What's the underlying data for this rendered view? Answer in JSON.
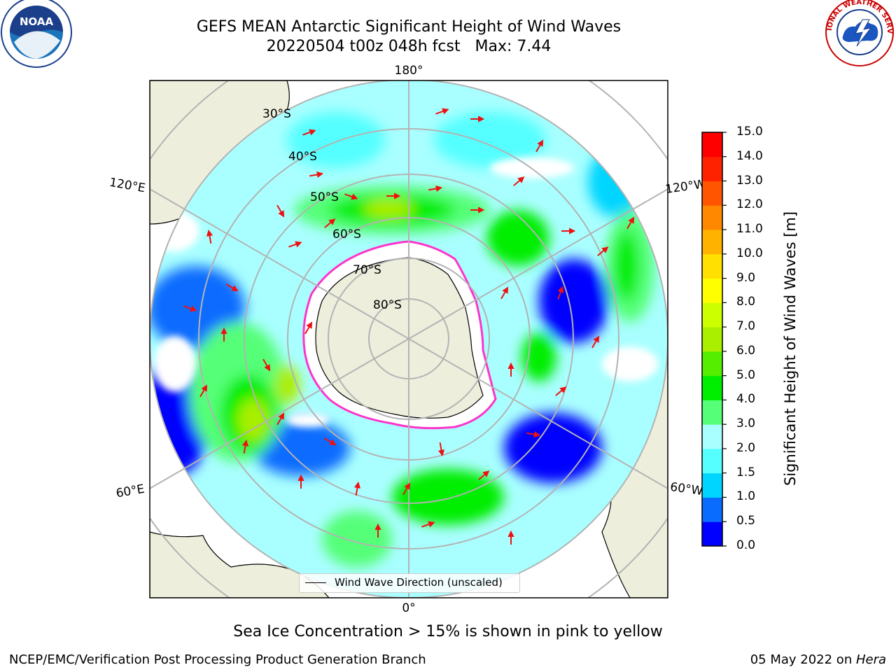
{
  "title": {
    "line1": "GEFS MEAN Antarctic Significant Height of Wind Waves",
    "line2": "20220504 t00z 048h fcst   Max: 7.44"
  },
  "map": {
    "longitude_labels": [
      "180°",
      "120°E",
      "120°W",
      "60°E",
      "60°W",
      "0°"
    ],
    "latitude_labels": [
      "30°S",
      "40°S",
      "50°S",
      "60°S",
      "70°S",
      "80°S"
    ],
    "legend_label": "Wind Wave Direction (unscaled)",
    "colors": {
      "land": "#eeeedc",
      "ice_edge": "#ff33cc",
      "arrow": "#ee1111",
      "graticule": "#b3b3b3"
    }
  },
  "colorbar": {
    "title": "Significant Height of Wind Waves [m]",
    "ticks": [
      "0.0",
      "0.5",
      "1.0",
      "1.5",
      "2.0",
      "3.0",
      "4.0",
      "5.0",
      "6.0",
      "7.0",
      "8.0",
      "9.0",
      "10.0",
      "11.0",
      "12.0",
      "13.0",
      "14.0",
      "15.0"
    ],
    "colors": [
      "#0000ff",
      "#0a6cff",
      "#00d5ff",
      "#55ffff",
      "#a9ffff",
      "#55ff77",
      "#00ee00",
      "#55ee00",
      "#aaee00",
      "#ccff00",
      "#ffff00",
      "#ffe000",
      "#ffb300",
      "#ff8800",
      "#ff5500",
      "#ff2200",
      "#ff0000"
    ]
  },
  "notes": {
    "sea_ice": "Sea Ice Concentration > 15% is shown in pink to yellow",
    "credit": "NCEP/EMC/Verification Post Processing Product Generation Branch",
    "date_prefix": "05 May 2022 on ",
    "date_machine": "Hera"
  },
  "logos": {
    "noaa": "NOAA",
    "nws": "NATIONAL WEATHER SERVICE"
  }
}
